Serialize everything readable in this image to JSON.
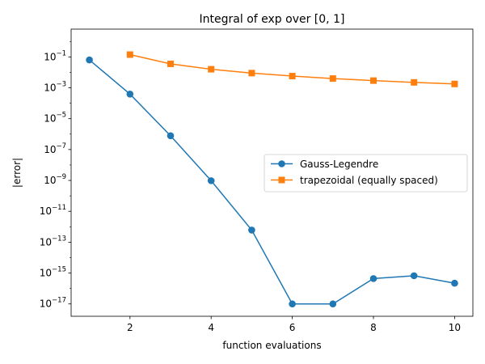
{
  "chart_data": {
    "type": "line",
    "title": "Integral of exp over [0, 1]",
    "xlabel": "function evaluations",
    "ylabel": "|error|",
    "xlim": [
      0.55,
      10.45
    ],
    "ylim_log10": [
      -17.8,
      0.8
    ],
    "yscale": "log",
    "grid": false,
    "legend_placement": "center-right",
    "x_ticks": [
      2,
      4,
      6,
      8,
      10
    ],
    "x_tick_labels": [
      "2",
      "4",
      "6",
      "8",
      "10"
    ],
    "y_ticks_log10": [
      -1,
      -3,
      -5,
      -7,
      -9,
      -11,
      -13,
      -15,
      -17
    ],
    "y_tick_labels": [
      {
        "base": "10",
        "exp": "−1"
      },
      {
        "base": "10",
        "exp": "−3"
      },
      {
        "base": "10",
        "exp": "−5"
      },
      {
        "base": "10",
        "exp": "−7"
      },
      {
        "base": "10",
        "exp": "−9"
      },
      {
        "base": "10",
        "exp": "−11"
      },
      {
        "base": "10",
        "exp": "−13"
      },
      {
        "base": "10",
        "exp": "−15"
      },
      {
        "base": "10",
        "exp": "−17"
      }
    ],
    "series": [
      {
        "name": "Gauss-Legendre",
        "color": "#1f77b4",
        "marker": "circle",
        "x": [
          1,
          2,
          3,
          4,
          5,
          6,
          7,
          8,
          9,
          10
        ],
        "y": [
          0.0639,
          0.00039,
          7.8e-07,
          9.6e-10,
          6.1e-13,
          1e-17,
          1e-17,
          4.4e-16,
          6.7e-16,
          2.2e-16
        ]
      },
      {
        "name": "trapezoidal (equally spaced)",
        "color": "#ff7f0e",
        "marker": "square",
        "x": [
          2,
          3,
          4,
          5,
          6,
          7,
          8,
          9,
          10
        ],
        "y": [
          0.141,
          0.0354,
          0.0159,
          0.00895,
          0.00573,
          0.00398,
          0.00292,
          0.00224,
          0.00177
        ]
      }
    ]
  }
}
